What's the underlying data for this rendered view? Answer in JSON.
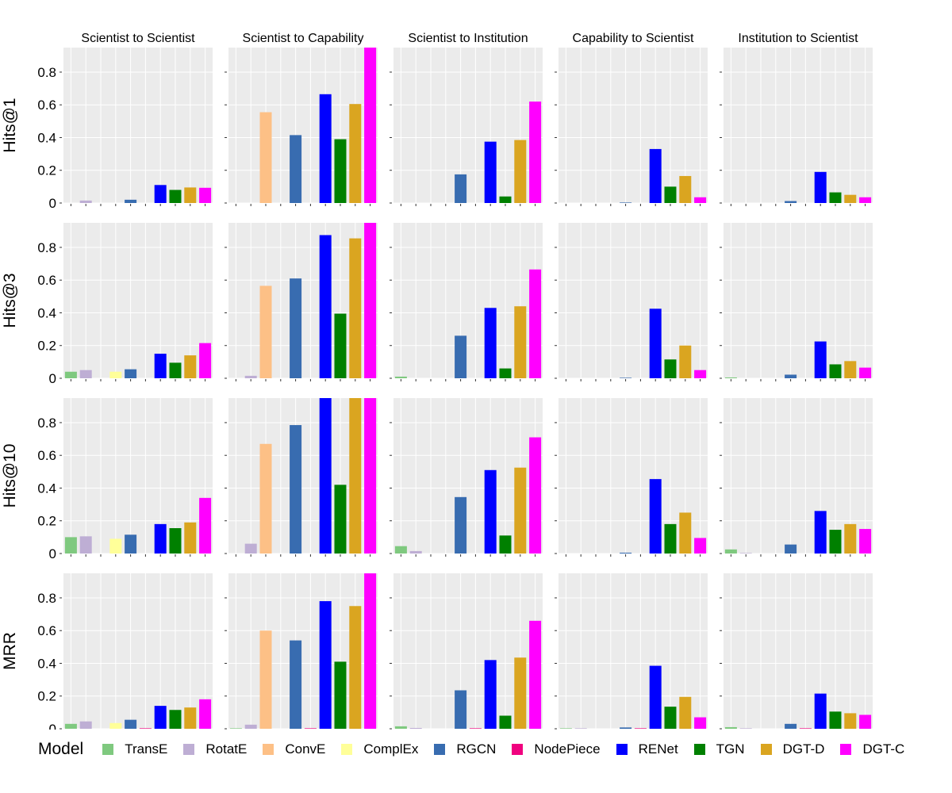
{
  "chart_data": {
    "type": "bar",
    "layout": "facet-grid",
    "row_labels": [
      "Hits@1",
      "Hits@3",
      "Hits@10",
      "MRR"
    ],
    "column_titles": [
      "Scientist to Scientist",
      "Scientist to Capability",
      "Scientist to Institution",
      "Capability to Scientist",
      "Institution to Scientist"
    ],
    "ylim": [
      0,
      0.95
    ],
    "yticks": [
      0,
      0.2,
      0.4,
      0.6,
      0.8
    ],
    "ytick_labels": [
      "0",
      "0.2",
      "0.4",
      "0.6",
      "0.8"
    ],
    "grid": true,
    "legend_title": "Model",
    "legend_position": "bottom",
    "models": [
      "TransE",
      "RotatE",
      "ConvE",
      "ComplEx",
      "RGCN",
      "NodePiece",
      "RENet",
      "TGN",
      "DGT-D",
      "DGT-C"
    ],
    "colors": [
      "#7fc97f",
      "#beaed4",
      "#fdc086",
      "#ffff99",
      "#386cb0",
      "#f0027f",
      "#0000ff",
      "#008000",
      "#daa520",
      "#ff00ff"
    ],
    "values": {
      "Hits@1": [
        [
          0,
          0.015,
          0,
          0,
          0.02,
          0,
          0.11,
          0.08,
          0.095,
          0.093
        ],
        [
          0,
          0,
          0.555,
          0,
          0.415,
          0,
          0.665,
          0.39,
          0.605,
          0.95
        ],
        [
          0,
          0,
          0,
          0,
          0.175,
          0,
          0.375,
          0.04,
          0.385,
          0.62
        ],
        [
          0,
          0,
          0,
          0,
          0.003,
          0,
          0.33,
          0.1,
          0.165,
          0.035
        ],
        [
          0,
          0,
          0,
          0,
          0.012,
          0,
          0.19,
          0.065,
          0.05,
          0.035
        ]
      ],
      "Hits@3": [
        [
          0.04,
          0.05,
          0,
          0.04,
          0.055,
          0,
          0.15,
          0.095,
          0.14,
          0.215
        ],
        [
          0,
          0.015,
          0.565,
          0,
          0.61,
          0,
          0.875,
          0.395,
          0.855,
          0.95
        ],
        [
          0.01,
          0,
          0,
          0,
          0.26,
          0,
          0.43,
          0.06,
          0.44,
          0.665
        ],
        [
          0,
          0,
          0,
          0,
          0.003,
          0,
          0.425,
          0.115,
          0.2,
          0.05
        ],
        [
          0.005,
          0,
          0,
          0,
          0.022,
          0,
          0.225,
          0.085,
          0.105,
          0.065
        ]
      ],
      "Hits@10": [
        [
          0.1,
          0.105,
          0,
          0.09,
          0.115,
          0,
          0.18,
          0.155,
          0.19,
          0.34
        ],
        [
          0,
          0.06,
          0.67,
          0,
          0.785,
          0,
          0.95,
          0.42,
          0.95,
          0.95
        ],
        [
          0.045,
          0.015,
          0,
          0,
          0.345,
          0,
          0.51,
          0.11,
          0.525,
          0.71
        ],
        [
          0,
          0,
          0,
          0,
          0.005,
          0,
          0.455,
          0.18,
          0.25,
          0.095
        ],
        [
          0.025,
          0.003,
          0,
          0,
          0.055,
          0,
          0.26,
          0.145,
          0.18,
          0.15
        ]
      ],
      "MRR": [
        [
          0.03,
          0.045,
          0,
          0.035,
          0.055,
          0.003,
          0.14,
          0.115,
          0.13,
          0.18
        ],
        [
          0.003,
          0.025,
          0.6,
          0,
          0.54,
          0.003,
          0.78,
          0.41,
          0.75,
          0.95
        ],
        [
          0.015,
          0.005,
          0,
          0,
          0.235,
          0.003,
          0.42,
          0.08,
          0.435,
          0.66
        ],
        [
          0.003,
          0.003,
          0,
          0,
          0.008,
          0.003,
          0.385,
          0.135,
          0.195,
          0.07
        ],
        [
          0.01,
          0.003,
          0,
          0,
          0.03,
          0.003,
          0.215,
          0.105,
          0.095,
          0.085
        ]
      ]
    }
  }
}
